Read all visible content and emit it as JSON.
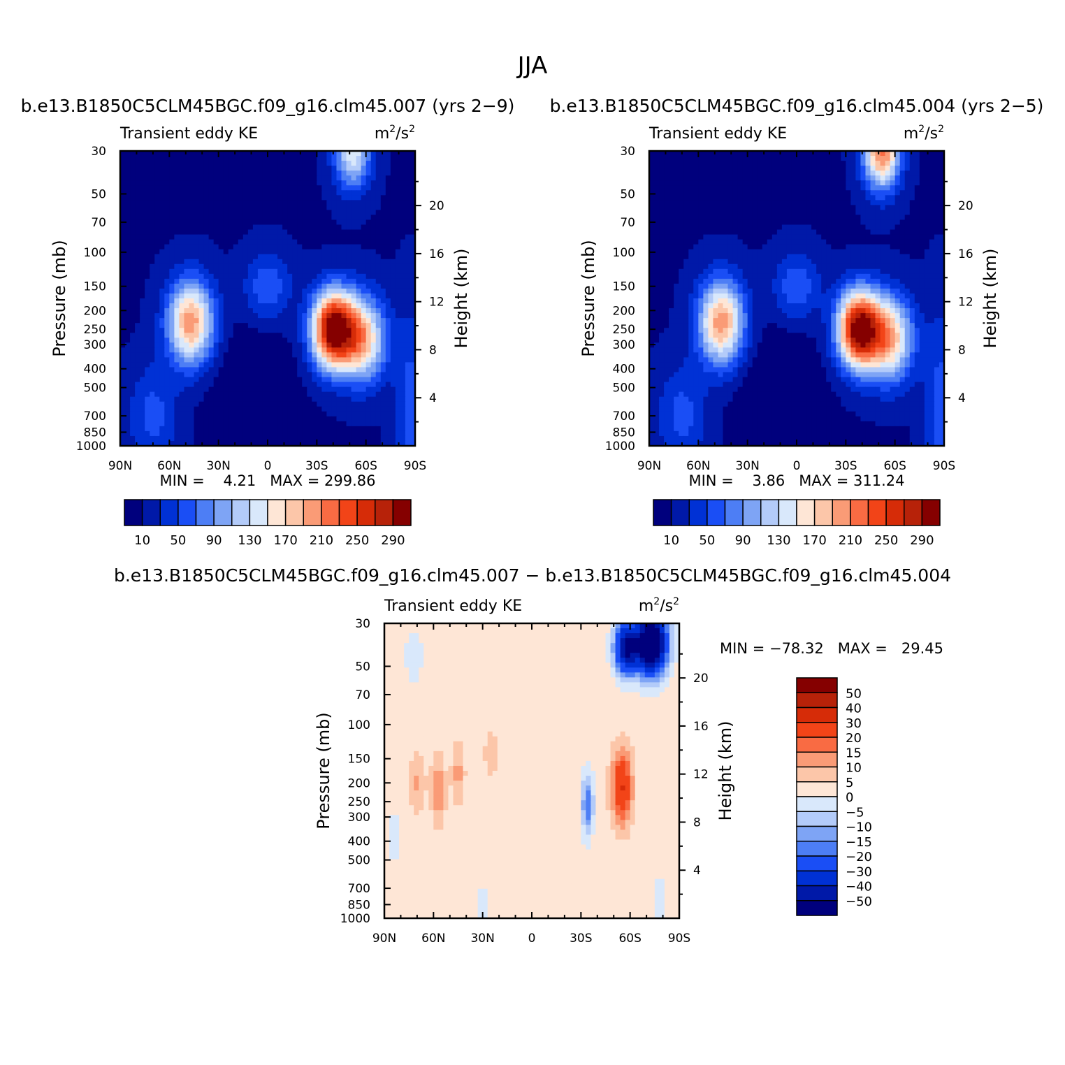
{
  "figure_title": "JJA",
  "panels": [
    {
      "id": "p1",
      "run_title": "b.e13.B1850C5CLM45BGC.f09_g16.clm45.007 (yrs 2−9)",
      "left_label": "Transient eddy KE",
      "units_base": "m",
      "units_mid": "/s",
      "units_exp": "2",
      "ylabel": "Pressure (mb)",
      "ylabel_right": "Height (km)",
      "minmax_text": "MIN =    4.21   MAX = 299.86"
    },
    {
      "id": "p2",
      "run_title": "b.e13.B1850C5CLM45BGC.f09_g16.clm45.004 (yrs 2−5)",
      "left_label": "Transient eddy KE",
      "units_base": "m",
      "units_mid": "/s",
      "units_exp": "2",
      "ylabel": "Pressure (mb)",
      "ylabel_right": "Height (km)",
      "minmax_text": "MIN =    3.86   MAX = 311.24"
    },
    {
      "id": "p3",
      "run_title": "b.e13.B1850C5CLM45BGC.f09_g16.clm45.007 − b.e13.B1850C5CLM45BGC.f09_g16.clm45.004",
      "left_label": "Transient eddy KE",
      "units_base": "m",
      "units_mid": "/s",
      "units_exp": "2",
      "ylabel": "Pressure (mb)",
      "ylabel_right": "Height (km)",
      "minmax_text": "MIN = −78.32   MAX =   29.45"
    }
  ],
  "chart_data": [
    {
      "type": "heatmap",
      "panel": "p1",
      "x_ticks": [
        "90N",
        "60N",
        "30N",
        "0",
        "30S",
        "60S",
        "90S"
      ],
      "x_values": [
        90,
        60,
        30,
        0,
        -30,
        -60,
        -90
      ],
      "y_ticks_pressure": [
        30,
        50,
        70,
        100,
        150,
        200,
        250,
        300,
        400,
        500,
        700,
        850,
        1000
      ],
      "y_ticks_height": [
        20,
        16,
        12,
        8,
        4
      ],
      "ylim_pressure": [
        1000,
        30
      ],
      "colorbar_labels": [
        "10",
        "50",
        "90",
        "130",
        "170",
        "210",
        "250",
        "290"
      ],
      "levels": [
        10,
        30,
        50,
        70,
        90,
        110,
        130,
        150,
        170,
        190,
        210,
        230,
        250,
        270,
        290
      ],
      "colors": [
        "#00007d",
        "#0019a8",
        "#0031d5",
        "#1a4ef5",
        "#4d7ef5",
        "#7ea4f5",
        "#b3cbf9",
        "#d9e8fb",
        "#fee6d6",
        "#fcc6a9",
        "#fa9b76",
        "#f96b43",
        "#f24418",
        "#d62c08",
        "#b72209",
        "#850000"
      ],
      "min": 4.21,
      "max": 299.86,
      "features": [
        {
          "name": "NH jet",
          "lat": 47,
          "p": 230,
          "peak": 200
        },
        {
          "name": "SH jet",
          "lat": -40,
          "p": 250,
          "peak": 299.86
        },
        {
          "name": "SH upper",
          "lat": -52,
          "p": 30,
          "peak": 160
        }
      ]
    },
    {
      "type": "heatmap",
      "panel": "p2",
      "x_ticks": [
        "90N",
        "60N",
        "30N",
        "0",
        "30S",
        "60S",
        "90S"
      ],
      "x_values": [
        90,
        60,
        30,
        0,
        -30,
        -60,
        -90
      ],
      "y_ticks_pressure": [
        30,
        50,
        70,
        100,
        150,
        200,
        250,
        300,
        400,
        500,
        700,
        850,
        1000
      ],
      "y_ticks_height": [
        20,
        16,
        12,
        8,
        4
      ],
      "ylim_pressure": [
        1000,
        30
      ],
      "colorbar_labels": [
        "10",
        "50",
        "90",
        "130",
        "170",
        "210",
        "250",
        "290"
      ],
      "levels": [
        10,
        30,
        50,
        70,
        90,
        110,
        130,
        150,
        170,
        190,
        210,
        230,
        250,
        270,
        290
      ],
      "colors": [
        "#00007d",
        "#0019a8",
        "#0031d5",
        "#1a4ef5",
        "#4d7ef5",
        "#7ea4f5",
        "#b3cbf9",
        "#d9e8fb",
        "#fee6d6",
        "#fcc6a9",
        "#fa9b76",
        "#f96b43",
        "#f24418",
        "#d62c08",
        "#b72209",
        "#850000"
      ],
      "min": 3.86,
      "max": 311.24,
      "features": [
        {
          "name": "NH jet",
          "lat": 48,
          "p": 230,
          "peak": 195
        },
        {
          "name": "SH jet",
          "lat": -38,
          "p": 250,
          "peak": 311.24
        },
        {
          "name": "SH upper",
          "lat": -52,
          "p": 30,
          "peak": 225
        }
      ]
    },
    {
      "type": "heatmap",
      "panel": "p3",
      "x_ticks": [
        "90N",
        "60N",
        "30N",
        "0",
        "30S",
        "60S",
        "90S"
      ],
      "x_values": [
        90,
        60,
        30,
        0,
        -30,
        -60,
        -90
      ],
      "y_ticks_pressure": [
        30,
        50,
        70,
        100,
        150,
        200,
        250,
        300,
        400,
        500,
        700,
        850,
        1000
      ],
      "y_ticks_height": [
        20,
        16,
        12,
        8,
        4
      ],
      "ylim_pressure": [
        1000,
        30
      ],
      "colorbar_labels": [
        "50",
        "40",
        "30",
        "20",
        "15",
        "10",
        "5",
        "0",
        "−5",
        "−10",
        "−15",
        "−20",
        "−30",
        "−40",
        "−50"
      ],
      "levels": [
        -50,
        -40,
        -30,
        -20,
        -15,
        -10,
        -5,
        0,
        5,
        10,
        15,
        20,
        30,
        40,
        50
      ],
      "colors": [
        "#00007d",
        "#0019a8",
        "#0031d5",
        "#1a4ef5",
        "#4d7ef5",
        "#7ea4f5",
        "#b3cbf9",
        "#d9e8fb",
        "#fee6d6",
        "#fcc6a9",
        "#fa9b76",
        "#f96b43",
        "#f24418",
        "#d62c08",
        "#b72209",
        "#850000"
      ],
      "min": -78.32,
      "max": 29.45,
      "features": [
        {
          "name": "SH jet positive",
          "lat": -55,
          "p": 210,
          "peak": 29.45
        },
        {
          "name": "SH upper negative",
          "lat": -72,
          "p": 35,
          "peak": -78.32
        },
        {
          "name": "tropical negative",
          "lat": -35,
          "p": 260,
          "peak": -20
        }
      ]
    }
  ]
}
